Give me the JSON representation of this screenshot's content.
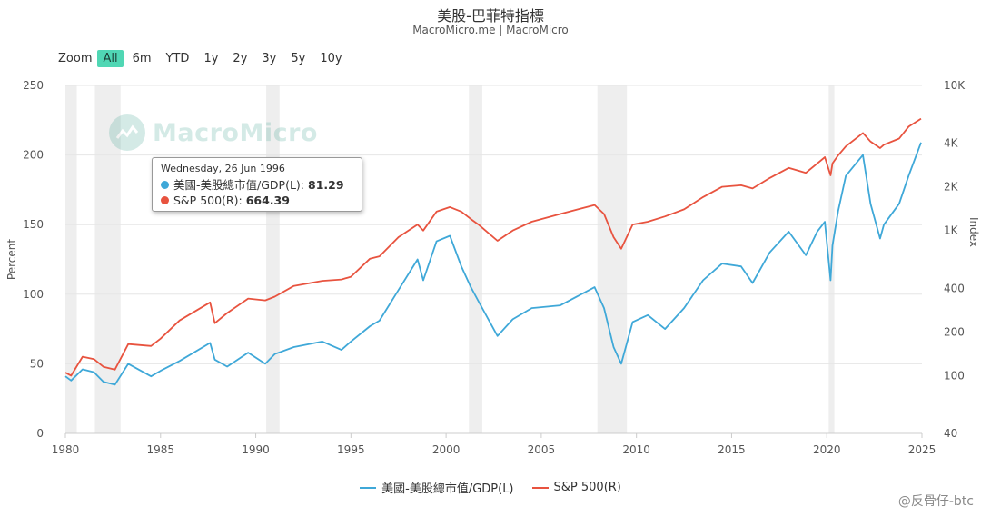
{
  "title": "美股-巴菲特指標",
  "subtitle": "MacroMicro.me | MacroMicro",
  "zoom": {
    "label": "Zoom",
    "buttons": [
      "All",
      "6m",
      "YTD",
      "1y",
      "2y",
      "3y",
      "5y",
      "10y"
    ],
    "active": "All"
  },
  "watermark": "MacroMicro",
  "tooltip": {
    "date": "Wednesday, 26 Jun 1996",
    "rows": [
      {
        "label": "美國-美股總市值/GDP(L):",
        "value": "81.29"
      },
      {
        "label": "S&P 500(R):",
        "value": "664.39"
      }
    ]
  },
  "credit": "@反骨仔-btc",
  "colors": {
    "buffett": "#3fa8d8",
    "sp500": "#e8533f",
    "recession": "#eeeeee",
    "grid": "#e6e6e6"
  },
  "chart_data": {
    "type": "line",
    "xlabel": "",
    "ylabel_left": "Percent",
    "ylabel_right": "Index",
    "y_left_range": [
      0,
      250
    ],
    "y_left_ticks": [
      0,
      50,
      100,
      150,
      200,
      250
    ],
    "y_right_scale": "log",
    "y_right_range": [
      40,
      10000
    ],
    "y_right_ticks": [
      40,
      100,
      200,
      400,
      1000,
      2000,
      4000,
      10000
    ],
    "y_right_tick_labels": [
      "40",
      "100",
      "200",
      "400",
      "1K",
      "2K",
      "4K",
      "10K"
    ],
    "x_range": [
      1980,
      2025
    ],
    "x_ticks": [
      1980,
      1985,
      1990,
      1995,
      2000,
      2005,
      2010,
      2015,
      2020,
      2025
    ],
    "recessions": [
      [
        1980.0,
        1980.6
      ],
      [
        1981.55,
        1982.9
      ],
      [
        1990.55,
        1991.25
      ],
      [
        2001.2,
        2001.9
      ],
      [
        2007.95,
        2009.5
      ],
      [
        2020.1,
        2020.4
      ]
    ],
    "legend_position": "bottom",
    "grid": true,
    "series": [
      {
        "name": "美國-美股總市值/GDP(L)",
        "axis": "left",
        "x": [
          1980,
          1980.3,
          1980.9,
          1981.5,
          1982.0,
          1982.6,
          1983.3,
          1984.5,
          1985.0,
          1986.0,
          1987.6,
          1987.85,
          1988.5,
          1989.6,
          1990.5,
          1991.0,
          1992.0,
          1993.5,
          1994.5,
          1995.0,
          1996.0,
          1996.5,
          1997.5,
          1998.5,
          1998.8,
          1999.5,
          2000.2,
          2000.8,
          2001.3,
          2001.7,
          2002.7,
          2003.5,
          2004.5,
          2006.0,
          2007.8,
          2008.3,
          2008.8,
          2009.2,
          2009.8,
          2010.6,
          2011.5,
          2012.5,
          2013.5,
          2014.5,
          2015.5,
          2016.1,
          2017.0,
          2018.0,
          2018.9,
          2019.5,
          2019.9,
          2020.2,
          2020.3,
          2020.6,
          2021.0,
          2021.9,
          2022.3,
          2022.8,
          2023.0,
          2023.8,
          2024.3,
          2024.95
        ],
        "y": [
          41,
          38,
          46,
          44,
          37,
          35,
          50,
          41,
          45,
          52,
          65,
          53,
          48,
          58,
          50,
          57,
          62,
          66,
          60,
          66,
          77,
          81,
          103,
          125,
          110,
          138,
          142,
          120,
          105,
          95,
          70,
          82,
          90,
          92,
          105,
          90,
          62,
          50,
          80,
          85,
          75,
          90,
          110,
          122,
          120,
          108,
          130,
          145,
          128,
          145,
          152,
          110,
          135,
          160,
          185,
          200,
          165,
          140,
          150,
          165,
          185,
          209
        ]
      },
      {
        "name": "S&P 500(R)",
        "axis": "right",
        "x": [
          1980,
          1980.3,
          1980.9,
          1981.5,
          1982.0,
          1982.6,
          1983.3,
          1984.5,
          1985.0,
          1986.0,
          1987.6,
          1987.85,
          1988.5,
          1989.6,
          1990.5,
          1991.0,
          1992.0,
          1993.5,
          1994.5,
          1995.0,
          1996.0,
          1996.5,
          1997.5,
          1998.5,
          1998.8,
          1999.5,
          2000.2,
          2000.8,
          2001.3,
          2001.7,
          2002.7,
          2003.5,
          2004.5,
          2006.0,
          2007.8,
          2008.3,
          2008.8,
          2009.2,
          2009.8,
          2010.6,
          2011.5,
          2012.5,
          2013.5,
          2014.5,
          2015.5,
          2016.1,
          2017.0,
          2018.0,
          2018.9,
          2019.5,
          2019.9,
          2020.2,
          2020.3,
          2020.6,
          2021.0,
          2021.9,
          2022.3,
          2022.8,
          2023.0,
          2023.8,
          2024.3,
          2024.95
        ],
        "y": [
          105,
          100,
          135,
          130,
          115,
          110,
          165,
          160,
          180,
          240,
          320,
          230,
          270,
          340,
          330,
          350,
          415,
          450,
          460,
          480,
          640,
          664,
          900,
          1100,
          1000,
          1350,
          1450,
          1350,
          1200,
          1100,
          850,
          1000,
          1150,
          1300,
          1500,
          1300,
          900,
          750,
          1100,
          1150,
          1250,
          1400,
          1700,
          2000,
          2050,
          1950,
          2300,
          2700,
          2500,
          2900,
          3200,
          2400,
          2900,
          3300,
          3800,
          4700,
          4100,
          3700,
          3900,
          4300,
          5200,
          5900
        ]
      }
    ]
  }
}
